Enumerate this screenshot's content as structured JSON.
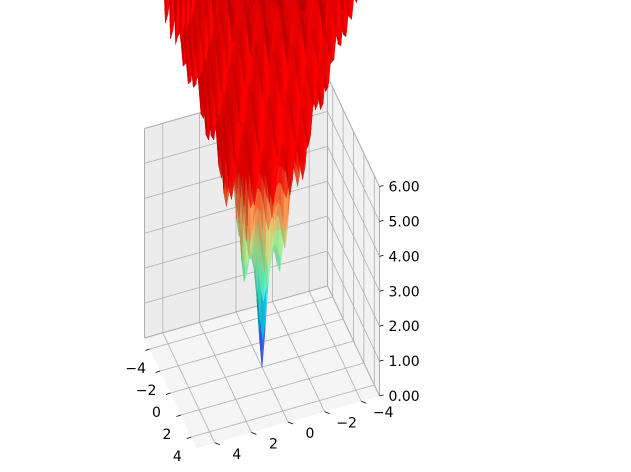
{
  "chart_data": {
    "type": "surface",
    "title": "",
    "xlabel": "",
    "ylabel": "",
    "zlabel": "",
    "function": "Ackley",
    "colormap": "rainbow",
    "grid": true,
    "x_range": [
      -5,
      5
    ],
    "y_range": [
      -5,
      5
    ],
    "zlim": [
      0,
      6
    ],
    "x_ticks": [
      -4,
      -2,
      0,
      2,
      4
    ],
    "y_ticks": [
      -4,
      -2,
      0,
      2,
      4
    ],
    "z_ticks": [
      0,
      1,
      2,
      3,
      4,
      5,
      6
    ],
    "x_tick_labels": [
      "−4",
      "−2",
      "0",
      "2",
      "4"
    ],
    "y_tick_labels": [
      "−4",
      "−2",
      "0",
      "2",
      "4"
    ],
    "z_tick_labels": [
      "0.00",
      "1.00",
      "2.00",
      "3.00",
      "4.00",
      "5.00",
      "6.00"
    ],
    "minimum": {
      "x": 0,
      "y": 0,
      "z": 0
    },
    "z_max_observed": 6
  }
}
